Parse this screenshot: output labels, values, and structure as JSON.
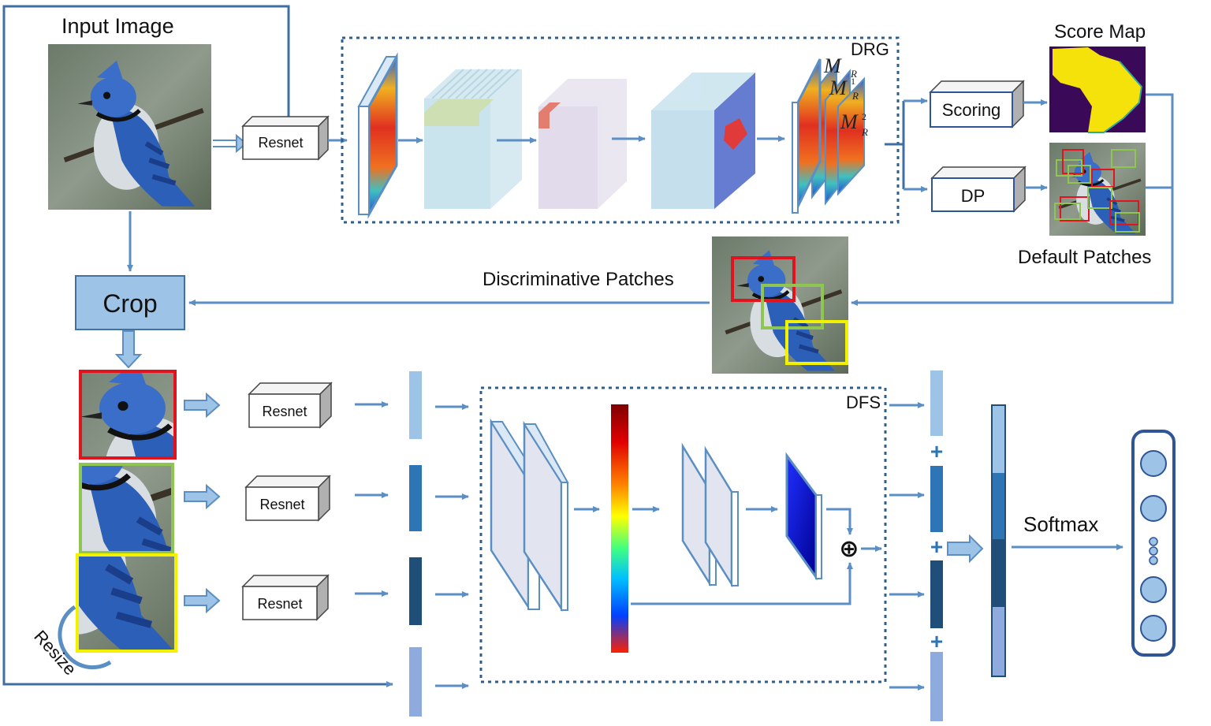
{
  "labels": {
    "input_image": "Input Image",
    "score_map": "Score Map",
    "default_patches": "Default Patches",
    "discriminative_patches": "Discriminative Patches",
    "drg": "DRG",
    "dfs": "DFS",
    "softmax": "Softmax",
    "resize": "Resize",
    "crop": "Crop",
    "scoring": "Scoring",
    "dp": "DP",
    "resnet_main": "Resnet",
    "resnet_1": "Resnet",
    "resnet_2": "Resnet",
    "resnet_3": "Resnet",
    "m_r": "M",
    "m_r_sub": "R",
    "m_r1": "M",
    "m_r1_sub": "R",
    "m_r1_sup": "1",
    "m_r2": "M",
    "m_r2_sub": "R",
    "m_r2_sup": "2",
    "plus_1": "+",
    "plus_2": "+",
    "plus_3": "+",
    "oplus": "⊕"
  },
  "colors": {
    "arrow": "#5b8fc4",
    "box_border": "#2f5597",
    "crop_fill": "#9dc3e6",
    "dashed": "#2f5f8a",
    "feat_light": "#9dc3e6",
    "feat_mid": "#2e75b6",
    "feat_dark": "#1f4e79",
    "feat_pale": "#8faadc",
    "patch_red": "#e0141e",
    "patch_green": "#8fc551",
    "patch_yellow": "#f2f200"
  },
  "icons": [
    "bird-image",
    "score-map-heatmap",
    "default-patches-image",
    "softmax-output-vector"
  ]
}
